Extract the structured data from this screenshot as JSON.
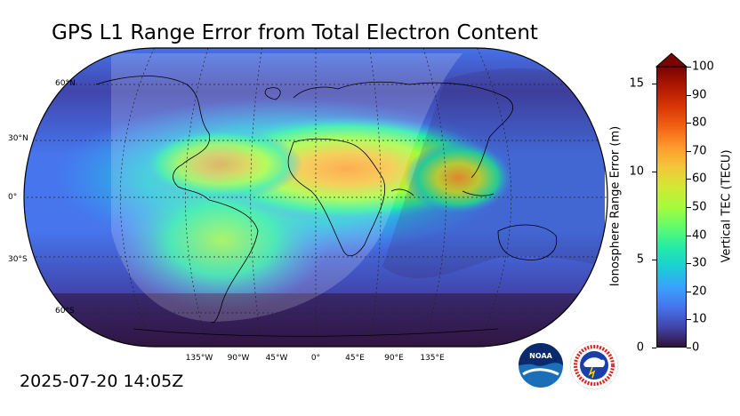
{
  "header": {
    "title": "GPS L1 Range Error from Total Electron Content",
    "timestamp": "2025-07-20 14:05Z"
  },
  "map": {
    "projection": "Robinson",
    "lat_labels": [
      "60°N",
      "30°N",
      "0°",
      "30°S",
      "60°S"
    ],
    "lon_labels": [
      "135°W",
      "90°W",
      "45°W",
      "0°",
      "45°E",
      "90°E",
      "135°E"
    ]
  },
  "colorbar": {
    "left_axis_label": "Ionosphere Range Error (m)",
    "right_axis_label": "Vertical TEC (TECU)",
    "left_ticks": [
      "15",
      "10",
      "5",
      "0"
    ],
    "right_ticks": [
      "100",
      "90",
      "80",
      "70",
      "60",
      "50",
      "40",
      "30",
      "20",
      "10",
      "0"
    ],
    "colors": [
      "#30123b",
      "#4145ab",
      "#4675ed",
      "#39a2fc",
      "#1bcfd4",
      "#24eca6",
      "#61fc6c",
      "#a4fc3b",
      "#d1e834",
      "#f3c63a",
      "#fe9b2d",
      "#f36315",
      "#d93806",
      "#b11901",
      "#7a0403"
    ],
    "extend_color": "#7a0403"
  },
  "logos": {
    "noaa_text": "NOAA",
    "nws_text": "NATIONAL WEATHER SERVICE"
  }
}
